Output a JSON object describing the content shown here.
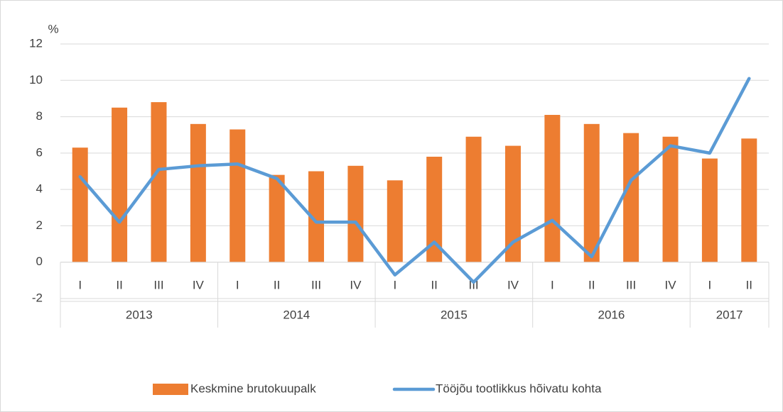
{
  "chart_data": {
    "type": "bar-line",
    "y_label": "%",
    "categories": [
      "I",
      "II",
      "III",
      "IV",
      "I",
      "II",
      "III",
      "IV",
      "I",
      "II",
      "III",
      "IV",
      "I",
      "II",
      "III",
      "IV",
      "I",
      "II"
    ],
    "groups": [
      {
        "label": "2013",
        "span": 4
      },
      {
        "label": "2014",
        "span": 4
      },
      {
        "label": "2015",
        "span": 4
      },
      {
        "label": "2016",
        "span": 4
      },
      {
        "label": "2017",
        "span": 2
      }
    ],
    "series": [
      {
        "name": "Keskmine brutokuupalk",
        "type": "bar",
        "color": "#ed7d31",
        "values": [
          6.3,
          8.5,
          8.8,
          7.6,
          7.3,
          4.8,
          5.0,
          5.3,
          4.5,
          5.8,
          6.9,
          6.4,
          8.1,
          7.6,
          7.1,
          6.9,
          5.7,
          6.8
        ]
      },
      {
        "name": "Tööjõu tootlikkus hõivatu kohta",
        "type": "line",
        "color": "#5b9bd5",
        "values": [
          4.7,
          2.2,
          5.1,
          5.3,
          5.4,
          4.6,
          2.2,
          2.2,
          -0.7,
          1.1,
          -1.1,
          1.1,
          2.3,
          0.3,
          4.5,
          6.4,
          6.0,
          10.1
        ]
      }
    ],
    "ylim": [
      -2,
      12
    ],
    "yticks": [
      -2,
      0,
      2,
      4,
      6,
      8,
      10,
      12
    ],
    "grid": true,
    "legend": "bottom"
  }
}
